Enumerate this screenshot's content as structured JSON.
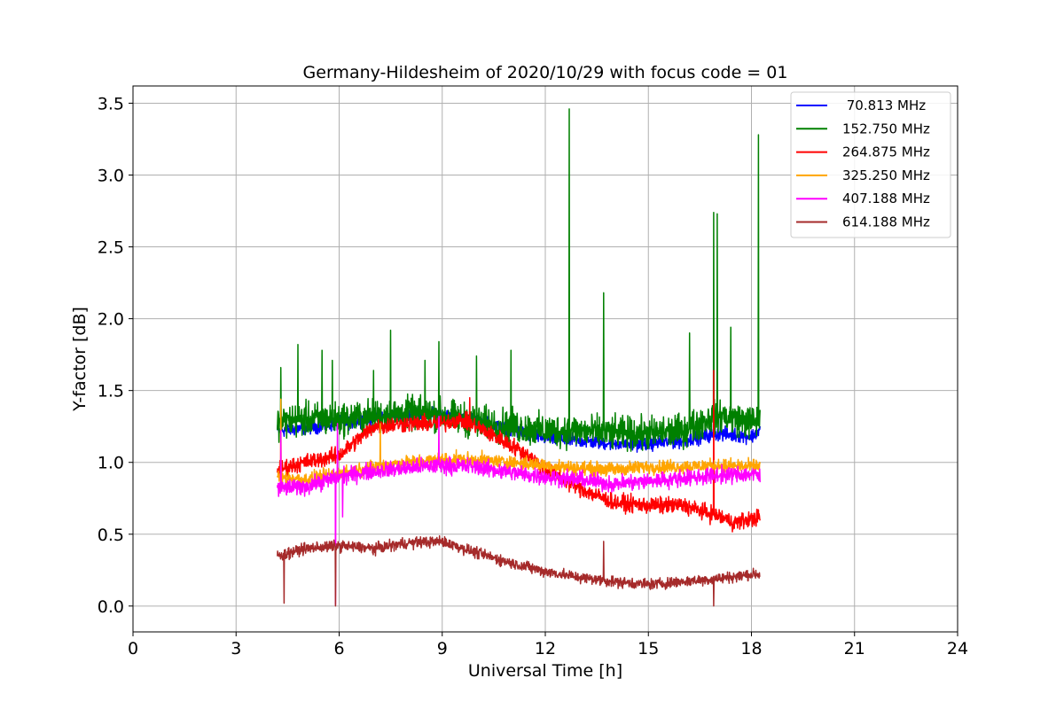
{
  "chart_data": {
    "type": "line",
    "title": "Germany-Hildesheim of 2020/10/29 with focus code = 01",
    "xlabel": "Universal Time [h]",
    "ylabel": "Y-factor [dB]",
    "xlim": [
      0,
      24
    ],
    "ylim": [
      -0.18,
      3.62
    ],
    "xticks": [
      "0",
      "3",
      "6",
      "9",
      "12",
      "15",
      "18",
      "21",
      "24"
    ],
    "yticks": [
      "0.0",
      "0.5",
      "1.0",
      "1.5",
      "2.0",
      "2.5",
      "3.0",
      "3.5"
    ],
    "grid": true,
    "legend_position": "top-right",
    "series": [
      {
        "name": " 70.813 MHz",
        "color": "#0000ff",
        "noise": 0.05,
        "points": [
          [
            4.2,
            1.22
          ],
          [
            5,
            1.24
          ],
          [
            6,
            1.27
          ],
          [
            7,
            1.31
          ],
          [
            8,
            1.33
          ],
          [
            9,
            1.33
          ],
          [
            10,
            1.29
          ],
          [
            11,
            1.22
          ],
          [
            12,
            1.17
          ],
          [
            13,
            1.15
          ],
          [
            14,
            1.13
          ],
          [
            15,
            1.13
          ],
          [
            16,
            1.15
          ],
          [
            17,
            1.2
          ],
          [
            18,
            1.18
          ],
          [
            18.25,
            1.22
          ]
        ],
        "spikes": [
          [
            16.9,
            1.35
          ],
          [
            17.1,
            1.33
          ]
        ]
      },
      {
        "name": "152.750 MHz",
        "color": "#008000",
        "noise": 0.12,
        "points": [
          [
            4.2,
            1.28
          ],
          [
            5,
            1.3
          ],
          [
            6,
            1.3
          ],
          [
            7,
            1.32
          ],
          [
            8,
            1.34
          ],
          [
            9,
            1.33
          ],
          [
            10,
            1.28
          ],
          [
            11,
            1.25
          ],
          [
            12,
            1.22
          ],
          [
            13,
            1.22
          ],
          [
            14,
            1.2
          ],
          [
            15,
            1.2
          ],
          [
            16,
            1.22
          ],
          [
            17,
            1.33
          ],
          [
            18,
            1.28
          ],
          [
            18.25,
            1.3
          ]
        ],
        "spikes": [
          [
            4.3,
            1.66
          ],
          [
            4.8,
            1.82
          ],
          [
            5.5,
            1.78
          ],
          [
            5.8,
            1.71
          ],
          [
            7.0,
            1.64
          ],
          [
            7.5,
            1.92
          ],
          [
            8.5,
            1.71
          ],
          [
            8.9,
            1.84
          ],
          [
            10.0,
            1.74
          ],
          [
            11.0,
            1.78
          ],
          [
            12.7,
            3.46
          ],
          [
            13.7,
            2.18
          ],
          [
            16.2,
            1.9
          ],
          [
            16.9,
            2.74
          ],
          [
            17.0,
            2.73
          ],
          [
            17.4,
            1.94
          ],
          [
            18.2,
            3.28
          ]
        ]
      },
      {
        "name": "264.875 MHz",
        "color": "#ff0000",
        "noise": 0.06,
        "points": [
          [
            4.2,
            0.95
          ],
          [
            5,
            1.0
          ],
          [
            6,
            1.05
          ],
          [
            6.5,
            1.15
          ],
          [
            7,
            1.25
          ],
          [
            8,
            1.27
          ],
          [
            9,
            1.27
          ],
          [
            9.5,
            1.3
          ],
          [
            10,
            1.25
          ],
          [
            11,
            1.12
          ],
          [
            11.5,
            1.05
          ],
          [
            12,
            0.95
          ],
          [
            13,
            0.82
          ],
          [
            14,
            0.72
          ],
          [
            15,
            0.7
          ],
          [
            16,
            0.7
          ],
          [
            17,
            0.63
          ],
          [
            17.5,
            0.58
          ],
          [
            18.25,
            0.62
          ]
        ],
        "spikes": [
          [
            9.8,
            1.45
          ],
          [
            16.9,
            1.64
          ]
        ]
      },
      {
        "name": "325.250 MHz",
        "color": "#ffa500",
        "noise": 0.05,
        "points": [
          [
            4.2,
            0.9
          ],
          [
            5,
            0.88
          ],
          [
            6,
            0.92
          ],
          [
            7,
            0.97
          ],
          [
            8,
            1.0
          ],
          [
            9,
            1.02
          ],
          [
            10,
            1.02
          ],
          [
            11,
            1.0
          ],
          [
            12,
            0.98
          ],
          [
            13,
            0.96
          ],
          [
            14,
            0.95
          ],
          [
            15,
            0.97
          ],
          [
            16,
            0.97
          ],
          [
            17,
            0.98
          ],
          [
            18,
            0.97
          ],
          [
            18.25,
            0.98
          ]
        ],
        "spikes": [
          [
            4.3,
            1.44
          ],
          [
            7.2,
            1.27
          ]
        ]
      },
      {
        "name": "407.188 MHz",
        "color": "#ff00ff",
        "noise": 0.06,
        "points": [
          [
            4.2,
            0.82
          ],
          [
            5,
            0.83
          ],
          [
            6,
            0.9
          ],
          [
            7,
            0.94
          ],
          [
            8,
            0.96
          ],
          [
            9,
            0.98
          ],
          [
            10,
            0.97
          ],
          [
            11,
            0.93
          ],
          [
            12,
            0.9
          ],
          [
            13,
            0.88
          ],
          [
            14,
            0.85
          ],
          [
            15,
            0.87
          ],
          [
            16,
            0.89
          ],
          [
            17,
            0.91
          ],
          [
            18,
            0.92
          ],
          [
            18.25,
            0.9
          ]
        ],
        "spikes": [
          [
            4.3,
            1.22
          ],
          [
            5.9,
            0.01
          ],
          [
            5.95,
            1.27
          ],
          [
            6.1,
            0.62
          ],
          [
            8.9,
            1.32
          ]
        ]
      },
      {
        "name": "614.188 MHz",
        "color": "#a52a2a",
        "noise": 0.04,
        "points": [
          [
            4.2,
            0.35
          ],
          [
            5,
            0.4
          ],
          [
            6,
            0.42
          ],
          [
            7,
            0.4
          ],
          [
            8,
            0.44
          ],
          [
            9,
            0.45
          ],
          [
            10,
            0.37
          ],
          [
            11,
            0.3
          ],
          [
            12,
            0.24
          ],
          [
            13,
            0.2
          ],
          [
            14,
            0.17
          ],
          [
            15,
            0.15
          ],
          [
            16,
            0.17
          ],
          [
            17,
            0.19
          ],
          [
            18,
            0.22
          ],
          [
            18.25,
            0.22
          ]
        ],
        "spikes": [
          [
            4.4,
            0.02
          ],
          [
            5.9,
            0.0
          ],
          [
            13.7,
            0.45
          ],
          [
            16.9,
            0.0
          ]
        ]
      }
    ]
  }
}
